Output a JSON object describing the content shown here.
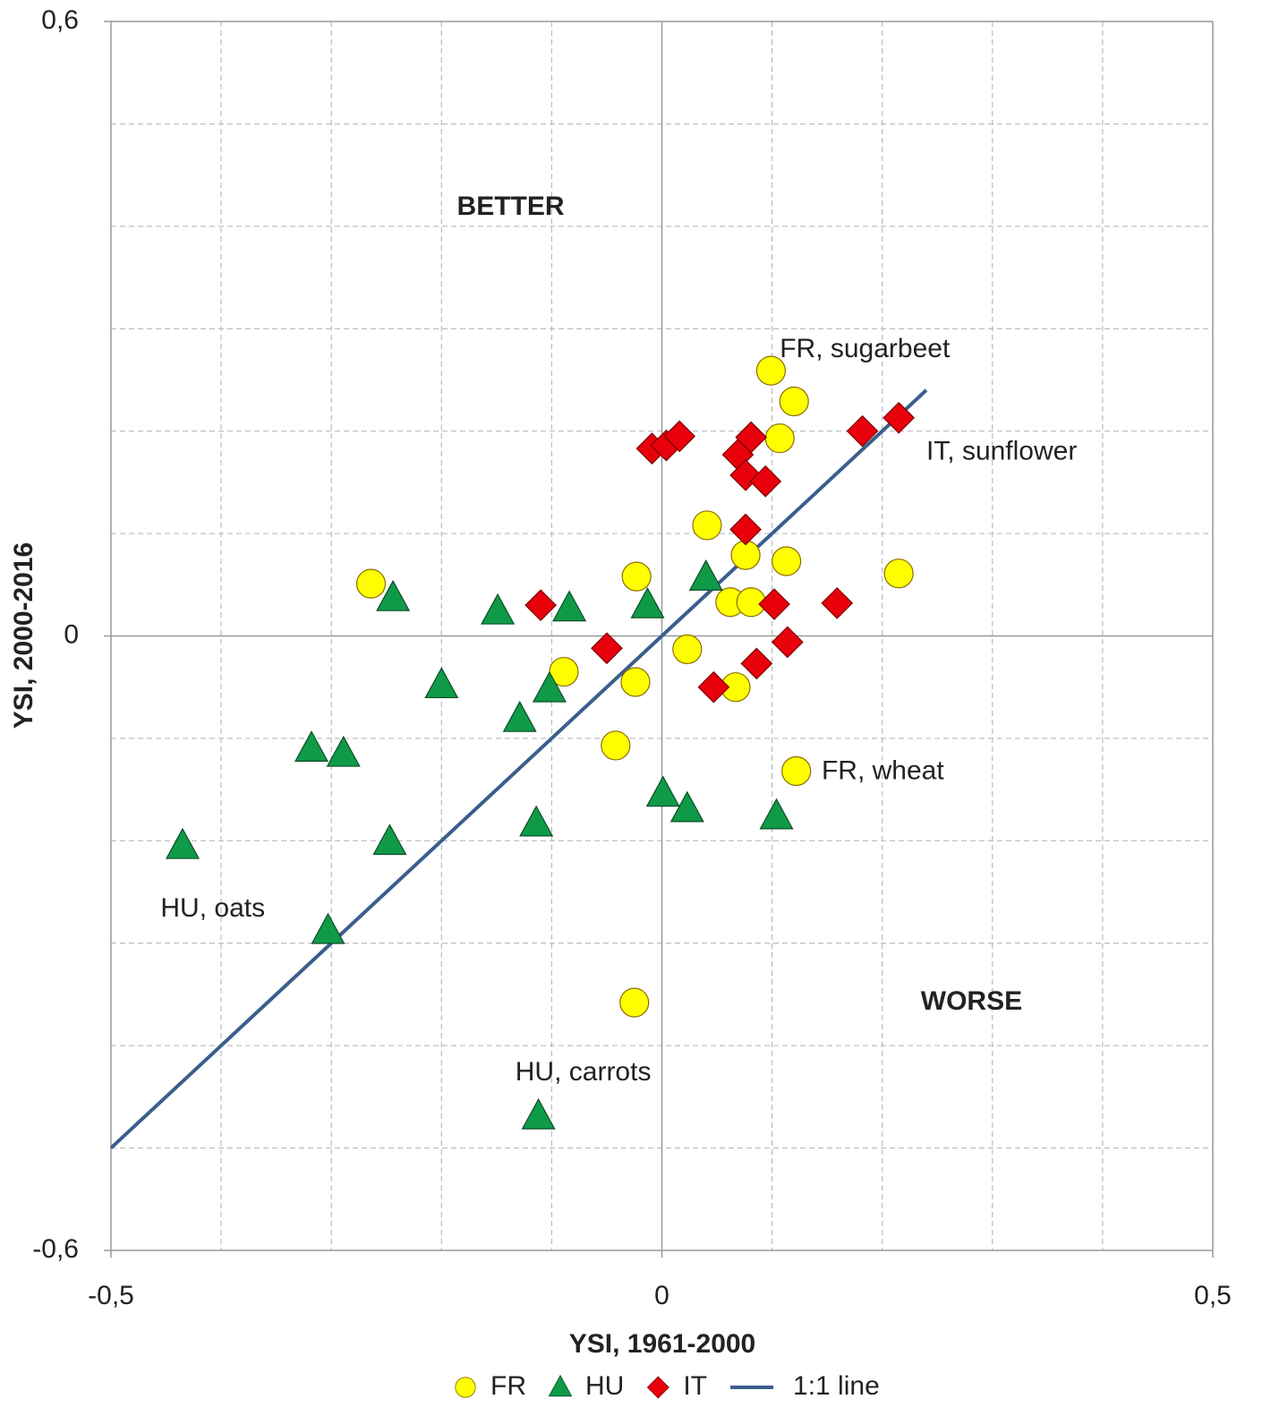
{
  "chart_data": {
    "type": "scatter",
    "x_label": "YSI, 1961-2000",
    "y_label": "YSI, 2000-2016",
    "xlim": [
      -0.5,
      0.5
    ],
    "ylim": [
      -0.6,
      0.6
    ],
    "xticks": [
      {
        "value": -0.5,
        "label": "-0,5"
      },
      0,
      {
        "value": 0.5,
        "label": "0,5"
      }
    ],
    "yticks": [
      {
        "value": -0.6,
        "label": "-0,6"
      },
      0,
      {
        "value": 0.6,
        "label": "0,6"
      }
    ],
    "xgrid": [
      -0.4,
      -0.3,
      -0.2,
      -0.1,
      0.1,
      0.2,
      0.3,
      0.4
    ],
    "ygrid": [
      -0.5,
      -0.4,
      -0.3,
      -0.2,
      -0.1,
      0.1,
      0.2,
      0.3,
      0.4,
      0.5
    ],
    "grid": true,
    "series": [
      {
        "name": "FR",
        "marker": "circle",
        "color": "#ffff00",
        "x": [
          0.099,
          0.12,
          0.107,
          0.041,
          0.076,
          0.113,
          0.215,
          -0.023,
          -0.264,
          0.062,
          0.081,
          0.023,
          -0.089,
          -0.024,
          0.067,
          -0.042,
          0.122,
          -0.025
        ],
        "values": [
          0.259,
          0.229,
          0.193,
          0.108,
          0.079,
          0.073,
          0.061,
          0.058,
          0.051,
          0.033,
          0.033,
          -0.013,
          -0.035,
          -0.045,
          -0.05,
          -0.107,
          -0.132,
          -0.358
        ]
      },
      {
        "name": "HU",
        "marker": "triangle",
        "color": "#0f9a48",
        "x": [
          -0.435,
          -0.318,
          -0.289,
          -0.303,
          -0.247,
          -0.244,
          -0.2,
          -0.149,
          -0.129,
          -0.114,
          -0.112,
          -0.102,
          -0.084,
          -0.013,
          0.001,
          0.023,
          0.04,
          0.104
        ],
        "values": [
          -0.205,
          -0.11,
          -0.115,
          -0.288,
          -0.201,
          0.037,
          -0.048,
          0.024,
          -0.081,
          -0.183,
          -0.469,
          -0.052,
          0.027,
          0.03,
          -0.154,
          -0.169,
          0.057,
          -0.176
        ]
      },
      {
        "name": "IT",
        "marker": "diamond",
        "color": "#e8000b",
        "x": [
          -0.009,
          0.004,
          0.016,
          0.069,
          0.081,
          0.076,
          0.094,
          0.182,
          0.215,
          0.076,
          -0.11,
          0.102,
          0.159,
          -0.05,
          0.114,
          0.086,
          0.047
        ],
        "values": [
          0.183,
          0.186,
          0.195,
          0.177,
          0.194,
          0.157,
          0.151,
          0.2,
          0.213,
          0.104,
          0.03,
          0.031,
          0.032,
          -0.012,
          -0.006,
          -0.027,
          -0.05
        ]
      },
      {
        "name": "1:1 line",
        "marker": "line",
        "color": "#3b5e8c",
        "x": [
          -0.5,
          0.24
        ],
        "values": [
          -0.5,
          0.24
        ]
      }
    ],
    "annotations": [
      {
        "text": "FR, sugarbeet",
        "x": 0.107,
        "y": 0.279,
        "color": "#222222"
      },
      {
        "text": "IT, sunflower",
        "x": 0.24,
        "y": 0.179,
        "color": "#222222"
      },
      {
        "text": "FR, wheat",
        "x": 0.145,
        "y": -0.133,
        "color": "#222222"
      },
      {
        "text": "HU, oats",
        "x": -0.455,
        "y": -0.267,
        "color": "#222222"
      },
      {
        "text": "HU, carrots",
        "x": -0.133,
        "y": -0.427,
        "color": "#222222"
      },
      {
        "text": "BETTER",
        "x": -0.186,
        "y": 0.418,
        "color": "#1db34e",
        "bold": true
      },
      {
        "text": "WORSE",
        "x": 0.235,
        "y": -0.358,
        "color": "#ee1c24",
        "bold": true
      }
    ]
  }
}
